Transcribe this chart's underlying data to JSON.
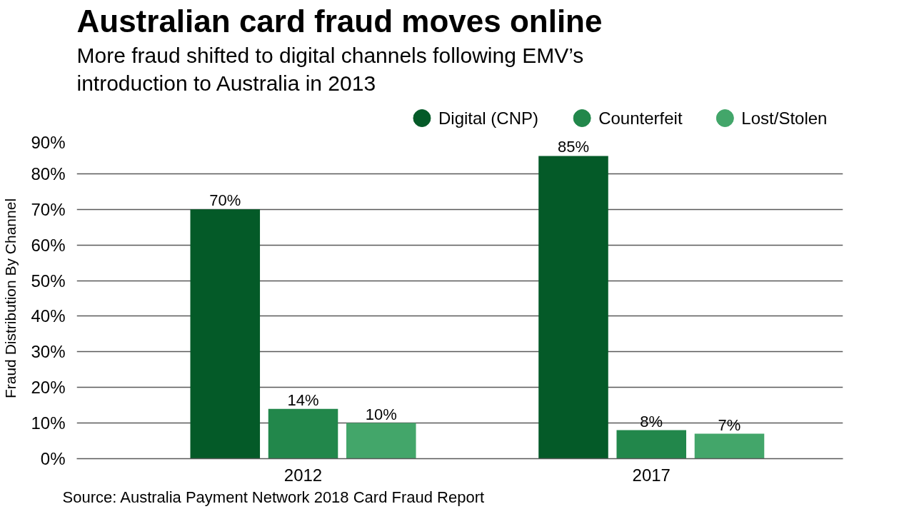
{
  "chart_data": {
    "type": "bar",
    "title": "Australian card fraud moves online",
    "subtitle": "More fraud shifted to digital channels following EMV’s introduction to Australia in 2013",
    "ylabel": "Fraud Distribution By Channel",
    "categories": [
      "2012",
      "2017"
    ],
    "series": [
      {
        "name": "Digital (CNP)",
        "color": "#045a28",
        "values": [
          70,
          85
        ],
        "value_labels": [
          "70%",
          "85%"
        ]
      },
      {
        "name": "Counterfeit",
        "color": "#22874b",
        "values": [
          14,
          8
        ],
        "value_labels": [
          "14%",
          "8%"
        ]
      },
      {
        "name": "Lost/Stolen",
        "color": "#43a66a",
        "values": [
          10,
          7
        ],
        "value_labels": [
          "10%",
          "7%"
        ]
      }
    ],
    "ylim": [
      0,
      90
    ],
    "yticks": [
      {
        "value": 0,
        "label": "0%"
      },
      {
        "value": 10,
        "label": "10%"
      },
      {
        "value": 20,
        "label": "20%"
      },
      {
        "value": 30,
        "label": "30%"
      },
      {
        "value": 40,
        "label": "40%"
      },
      {
        "value": 50,
        "label": "50%"
      },
      {
        "value": 60,
        "label": "60%"
      },
      {
        "value": 70,
        "label": "70%"
      },
      {
        "value": 80,
        "label": "80%"
      },
      {
        "value": 90,
        "label": "90%"
      }
    ],
    "grid": "y",
    "legend": "top right",
    "annotations": [
      "Source: Australia Payment Network 2018 Card Fraud Report"
    ]
  }
}
